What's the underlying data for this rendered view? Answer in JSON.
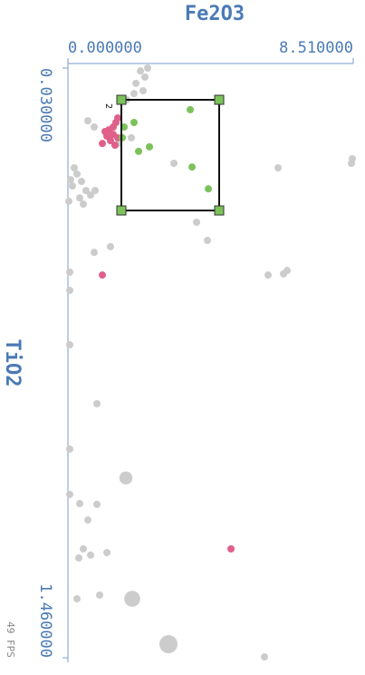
{
  "chart_data": {
    "type": "scatter",
    "x_label": "Fe2O3",
    "y_label": "TiO2",
    "xlim": [
      0,
      8.51
    ],
    "ylim": [
      0.03,
      1.46
    ],
    "xticks": [
      {
        "value": 0,
        "label": "0.000000"
      },
      {
        "value": 8.51,
        "label": "8.510000"
      }
    ],
    "yticks": [
      {
        "value": 0.03,
        "label": "0.030000"
      },
      {
        "value": 1.46,
        "label": "1.460000"
      }
    ],
    "series": [
      {
        "color": "#cccccc",
        "x": [
          2.162,
          2.378,
          2.297,
          2.027,
          2.243,
          1.972,
          1.756,
          0.594,
          0.784,
          1.891,
          1.486,
          3.161,
          6.269,
          8.484,
          8.457,
          0.189,
          0.27,
          0.081,
          0.405,
          0.135,
          0.54,
          0.676,
          0.351,
          0.027,
          0.811,
          0.459,
          3.837,
          4.161,
          1.27,
          0.784,
          0.054,
          0.054,
          5.971,
          6.431,
          6.539,
          0.054,
          0.865,
          0.054,
          0.054,
          1.729,
          0.351,
          0.865,
          0.594,
          0.459,
          0.676,
          0.324,
          1.162,
          0.27,
          0.946,
          1.918,
          2.999,
          5.863
        ],
        "values": [
          0.037,
          0.03,
          0.052,
          0.067,
          0.085,
          0.092,
          0.107,
          0.158,
          0.173,
          0.199,
          0.213,
          0.261,
          0.272,
          0.25,
          0.261,
          0.272,
          0.287,
          0.301,
          0.305,
          0.316,
          0.327,
          0.338,
          0.345,
          0.353,
          0.327,
          0.36,
          0.404,
          0.448,
          0.463,
          0.477,
          0.525,
          0.569,
          0.532,
          0.529,
          0.521,
          0.701,
          0.844,
          0.954,
          1.064,
          1.024,
          1.086,
          1.088,
          1.126,
          1.196,
          1.211,
          1.218,
          1.205,
          1.317,
          1.308,
          1.317,
          1.427,
          1.458
        ],
        "sizes": [
          1,
          1,
          1,
          1,
          1,
          1,
          1,
          1,
          1,
          1,
          1,
          1,
          1,
          1,
          1,
          1,
          1,
          1,
          1,
          1,
          1,
          1,
          1,
          1,
          1,
          1,
          1,
          1,
          1,
          1,
          1,
          1,
          1,
          1,
          1,
          1,
          1,
          1,
          1,
          1.8,
          1,
          1,
          1,
          1,
          1,
          1,
          1,
          1,
          1,
          2.2,
          2.5,
          1
        ]
      },
      {
        "color": "#e0608a",
        "x": [
          1.027,
          1.162,
          1.216,
          1.351,
          1.432,
          1.486,
          1.27,
          1.405,
          1.108,
          1.351,
          1.486,
          1.027,
          4.864
        ],
        "values": [
          0.213,
          0.195,
          0.18,
          0.173,
          0.162,
          0.151,
          0.206,
          0.217,
          0.184,
          0.191,
          0.199,
          0.532,
          1.196
        ]
      },
      {
        "color": "#7cc25a",
        "x": [
          1.675,
          1.972,
          1.621,
          2.432,
          2.108,
          3.648,
          3.702,
          4.188
        ],
        "values": [
          0.173,
          0.162,
          0.199,
          0.221,
          0.232,
          0.131,
          0.27,
          0.323
        ]
      }
    ]
  },
  "selection_label": "2",
  "fps": "49 FPS"
}
